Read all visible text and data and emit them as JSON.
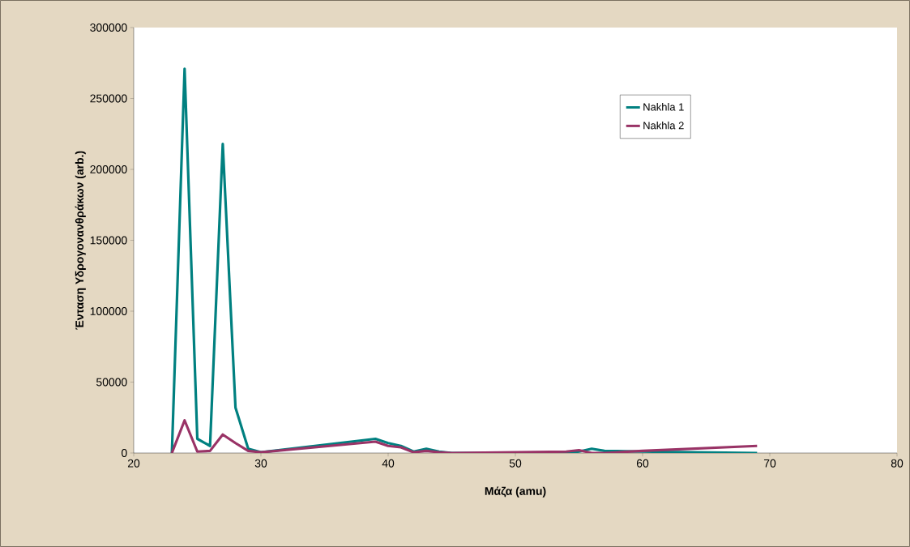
{
  "chart_data": {
    "type": "line",
    "xlabel": "Μάζα (amu)",
    "ylabel": "Ένταση Υδρογονανθράκων (arb.)",
    "xlim": [
      20,
      80
    ],
    "xticks": [
      20,
      30,
      40,
      50,
      60,
      70,
      80
    ],
    "ylim": [
      0,
      300000
    ],
    "yticks": [
      0,
      50000,
      100000,
      150000,
      200000,
      250000,
      300000
    ],
    "grid": false,
    "legend": "top right",
    "marker": "none",
    "line_style": "solid",
    "series": [
      {
        "name": "Nakhla 1",
        "color": "#008080",
        "x": [
          23,
          24,
          25,
          26,
          27,
          28,
          29,
          30,
          39,
          40,
          41,
          42,
          43,
          44,
          45,
          54,
          55,
          56,
          57,
          60,
          69
        ],
        "values": [
          0,
          271000,
          10000,
          5000,
          218000,
          32000,
          3000,
          500,
          10000,
          7000,
          5000,
          1000,
          3000,
          1000,
          0,
          0,
          1000,
          3000,
          1500,
          1000,
          0
        ]
      },
      {
        "name": "Nakhla 2",
        "color": "#993366",
        "x": [
          23,
          24,
          25,
          26,
          27,
          28,
          29,
          30,
          39,
          40,
          41,
          42,
          43,
          44,
          45,
          54,
          55,
          56,
          57,
          60,
          69
        ],
        "values": [
          0,
          23000,
          1000,
          1500,
          13000,
          7000,
          1500,
          500,
          8000,
          5000,
          4000,
          500,
          1500,
          500,
          0,
          1000,
          2000,
          0,
          0,
          1500,
          5000
        ]
      }
    ]
  }
}
